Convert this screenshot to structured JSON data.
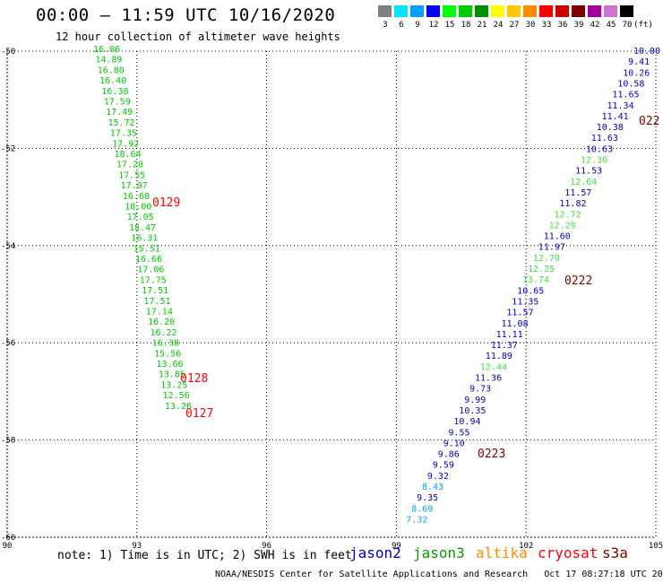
{
  "title": "00:00 – 11:59 UTC 10/16/2020",
  "subtitle": "12 hour collection of altimeter wave heights",
  "note": "note: 1) Time is in UTC; 2) SWH is in feet",
  "credit": "NOAA/NESDIS Center for Satellite Applications and Research   Oct 17 08:27:18 UTC 2020",
  "satellites": [
    {
      "name": "jason2",
      "color": "#0000cc"
    },
    {
      "name": "jason3",
      "color": "#00a000"
    },
    {
      "name": "altika",
      "color": "#ff8c00"
    },
    {
      "name": "cryosat",
      "color": "#ff0000"
    },
    {
      "name": "s3a",
      "color": "#800000"
    }
  ],
  "legend": {
    "unit": "(ft)",
    "bins": [
      {
        "label": "3",
        "color": "#808080"
      },
      {
        "label": "6",
        "color": "#00e5ff"
      },
      {
        "label": "9",
        "color": "#00a0ff"
      },
      {
        "label": "12",
        "color": "#0000ff"
      },
      {
        "label": "15",
        "color": "#00ff00"
      },
      {
        "label": "18",
        "color": "#00cc00"
      },
      {
        "label": "21",
        "color": "#009000"
      },
      {
        "label": "24",
        "color": "#ffff00"
      },
      {
        "label": "27",
        "color": "#ffc800"
      },
      {
        "label": "30",
        "color": "#ff8c00"
      },
      {
        "label": "33",
        "color": "#ff0000"
      },
      {
        "label": "36",
        "color": "#cc0000"
      },
      {
        "label": "39",
        "color": "#800000"
      },
      {
        "label": "42",
        "color": "#a000a0"
      },
      {
        "label": "45",
        "color": "#d070d0"
      },
      {
        "label": "70",
        "color": "#000000"
      }
    ]
  },
  "map": {
    "lon_ticks": [
      "90",
      "93",
      "96",
      "99",
      "102",
      "105"
    ],
    "lat_ticks": [
      "-50",
      "-52",
      "-54",
      "-56",
      "-58",
      "-60"
    ],
    "lon_range": [
      90,
      105
    ],
    "lat_range": [
      -60,
      -50
    ],
    "left_track": {
      "color": "#00c800",
      "values": [
        "16.06",
        "14.89",
        "16.80",
        "16.40",
        "16.38",
        "17.59",
        "17.49",
        "15.72",
        "17.35",
        "17.92",
        "18.64",
        "17.20",
        "17.55",
        "17.07",
        "16.68",
        "18.00",
        "17.05",
        "18.47",
        "16.31",
        "15.51",
        "16.66",
        "17.06",
        "17.75",
        "17.51",
        "17.51",
        "17.14",
        "16.20",
        "16.22",
        "16.38",
        "15.56",
        "13.66",
        "13.85",
        "13.25",
        "12.56",
        "13.26"
      ]
    },
    "right_track": {
      "values": [
        {
          "v": "10.00",
          "c": "#0000cc"
        },
        {
          "v": "9.41",
          "c": "#0000cc"
        },
        {
          "v": "10.26",
          "c": "#0000cc"
        },
        {
          "v": "10.58",
          "c": "#0000cc"
        },
        {
          "v": "11.65",
          "c": "#0000cc"
        },
        {
          "v": "11.34",
          "c": "#0000cc"
        },
        {
          "v": "11.41",
          "c": "#0000cc"
        },
        {
          "v": "10.38",
          "c": "#0000cc"
        },
        {
          "v": "11.63",
          "c": "#0000cc"
        },
        {
          "v": "10.63",
          "c": "#0000cc"
        },
        {
          "v": "12.30",
          "c": "#40e040"
        },
        {
          "v": "11.53",
          "c": "#0000cc"
        },
        {
          "v": "12.64",
          "c": "#40e040"
        },
        {
          "v": "11.57",
          "c": "#0000cc"
        },
        {
          "v": "11.82",
          "c": "#0000cc"
        },
        {
          "v": "12.72",
          "c": "#40e040"
        },
        {
          "v": "12.29",
          "c": "#40e040"
        },
        {
          "v": "11.60",
          "c": "#0000cc"
        },
        {
          "v": "11.97",
          "c": "#0000cc"
        },
        {
          "v": "12.70",
          "c": "#40e040"
        },
        {
          "v": "12.25",
          "c": "#40e040"
        },
        {
          "v": "13.74",
          "c": "#40e040"
        },
        {
          "v": "10.65",
          "c": "#0000cc"
        },
        {
          "v": "11.35",
          "c": "#0000cc"
        },
        {
          "v": "11.57",
          "c": "#0000cc"
        },
        {
          "v": "11.08",
          "c": "#0000cc"
        },
        {
          "v": "11.11",
          "c": "#0000cc"
        },
        {
          "v": "11.37",
          "c": "#0000cc"
        },
        {
          "v": "11.89",
          "c": "#0000cc"
        },
        {
          "v": "12.44",
          "c": "#40e040"
        },
        {
          "v": "11.36",
          "c": "#0000cc"
        },
        {
          "v": "9.73",
          "c": "#0000cc"
        },
        {
          "v": "9.99",
          "c": "#0000cc"
        },
        {
          "v": "10.35",
          "c": "#0000cc"
        },
        {
          "v": "10.94",
          "c": "#0000cc"
        },
        {
          "v": "9.55",
          "c": "#0000cc"
        },
        {
          "v": "9.10",
          "c": "#0000cc"
        },
        {
          "v": "9.86",
          "c": "#0000cc"
        },
        {
          "v": "9.59",
          "c": "#0000cc"
        },
        {
          "v": "9.32",
          "c": "#0000cc"
        },
        {
          "v": "8.43",
          "c": "#00a0ff"
        },
        {
          "v": "9.35",
          "c": "#0000cc"
        },
        {
          "v": "8.69",
          "c": "#00a0ff"
        },
        {
          "v": "7.32",
          "c": "#00a0ff"
        }
      ]
    },
    "time_labels": [
      {
        "text": "0129",
        "color": "#ff0000"
      },
      {
        "text": "0128",
        "color": "#ff0000"
      },
      {
        "text": "0127",
        "color": "#ff0000"
      },
      {
        "text": "022",
        "color": "#800000"
      },
      {
        "text": "0222",
        "color": "#800000"
      },
      {
        "text": "0223",
        "color": "#800000"
      }
    ]
  }
}
